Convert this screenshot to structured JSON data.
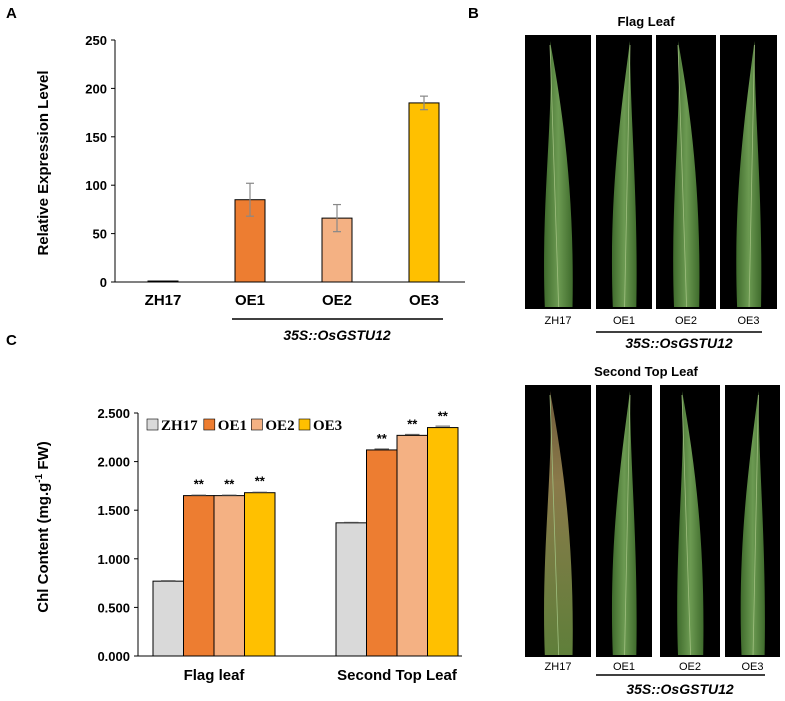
{
  "panel_letters": {
    "a": "A",
    "b": "B",
    "c": "C"
  },
  "colors": {
    "ZH17": "#d9d9d9",
    "OE1": "#ed7d31",
    "OE2": "#f4b183",
    "OE3": "#ffc000",
    "photo_bg": "#000000",
    "leaf": "#4f7f3a"
  },
  "chart_data": [
    {
      "panel": "A",
      "type": "bar",
      "title": "",
      "ylabel": "Relative Expression Level",
      "xlabel": "",
      "ylim": [
        0,
        250
      ],
      "yticks": [
        "0",
        "50",
        "100",
        "150",
        "200",
        "250"
      ],
      "categories": [
        "ZH17",
        "OE1",
        "OE2",
        "OE3"
      ],
      "values": [
        1,
        85,
        66,
        185
      ],
      "errors": [
        0.5,
        17,
        14,
        7
      ],
      "group_label": "35S::OsGSTU12"
    },
    {
      "panel": "C",
      "type": "bar",
      "title": "",
      "ylabel": "Chl Content (mg.g",
      "ylabel_sup": "-1",
      "ylabel_tail": " FW)",
      "xlabel": "",
      "ylim": [
        0,
        2.5
      ],
      "yticks": [
        "0.000",
        "0.500",
        "1.000",
        "1.500",
        "2.000",
        "2.500"
      ],
      "categories": [
        "Flag leaf",
        "Second Top Leaf"
      ],
      "legend": [
        "ZH17",
        "OE1",
        "OE2",
        "OE3"
      ],
      "legend_position": "top",
      "series": [
        {
          "name": "ZH17",
          "values": [
            0.77,
            1.37
          ],
          "errors": [
            0.005,
            0.005
          ],
          "sig": [
            "",
            ""
          ]
        },
        {
          "name": "OE1",
          "values": [
            1.65,
            2.12
          ],
          "errors": [
            0.005,
            0.01
          ],
          "sig": [
            "**",
            "**"
          ]
        },
        {
          "name": "OE2",
          "values": [
            1.65,
            2.27
          ],
          "errors": [
            0.005,
            0.01
          ],
          "sig": [
            "**",
            "**"
          ]
        },
        {
          "name": "OE3",
          "values": [
            1.68,
            2.35
          ],
          "errors": [
            0.005,
            0.015
          ],
          "sig": [
            "**",
            "**"
          ]
        }
      ]
    }
  ],
  "panel_b": {
    "flag_title": "Flag Leaf",
    "second_title": "Second Top Leaf",
    "labels": [
      "ZH17",
      "OE1",
      "OE2",
      "OE3"
    ],
    "group_label": "35S::OsGSTU12"
  }
}
